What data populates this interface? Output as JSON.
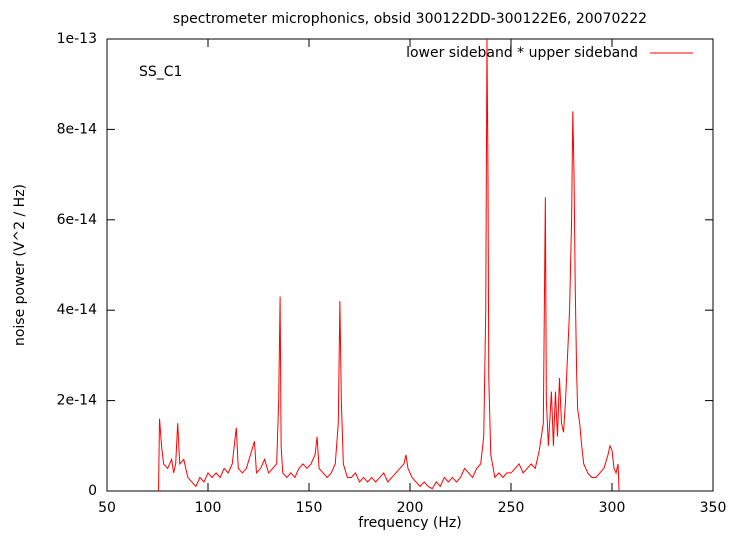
{
  "chart_data": {
    "type": "line",
    "title": "spectrometer microphonics, obsid 300122DD-300122E6, 20070222",
    "xlabel": "frequency (Hz)",
    "ylabel": "noise power (V^2 / Hz)",
    "annotation": "SS_C1",
    "legend": "top-right",
    "xlim": [
      50,
      350
    ],
    "xticks": [
      50,
      100,
      150,
      200,
      250,
      300,
      350
    ],
    "ylim": [
      0,
      1e-13
    ],
    "yticks": [
      0,
      2e-14,
      4e-14,
      6e-14,
      8e-14,
      1e-13
    ],
    "x": [
      75.5,
      76,
      77,
      78,
      80,
      82,
      83,
      84,
      85,
      86,
      88,
      90,
      92,
      94,
      96,
      98,
      100,
      102,
      104,
      106,
      108,
      110,
      112,
      114,
      115,
      117,
      119,
      121,
      123,
      124,
      126,
      128,
      130,
      132,
      134,
      135,
      135.7,
      136.2,
      137,
      139,
      141,
      143,
      145,
      147,
      149,
      151,
      153,
      154,
      155,
      157,
      159,
      161,
      163,
      164.5,
      165.3,
      166,
      167,
      169,
      171,
      173,
      175,
      177,
      179,
      181,
      183,
      185,
      187,
      189,
      191,
      193,
      195,
      197,
      198,
      199,
      201,
      203,
      205,
      207,
      209,
      211,
      213,
      215,
      217,
      219,
      221,
      223,
      225,
      227,
      229,
      231,
      233,
      235,
      236.5,
      237.5,
      238.1,
      238.6,
      239,
      240,
      242,
      244,
      246,
      248,
      250,
      252,
      254,
      256,
      258,
      260,
      262,
      264,
      266,
      267,
      267.5,
      268.5,
      270,
      271,
      272,
      273,
      274,
      275,
      276,
      277,
      278,
      279,
      280,
      280.6,
      281.2,
      281.8,
      282.5,
      283,
      284,
      285,
      286,
      288,
      290,
      292,
      294,
      296,
      298,
      299,
      300,
      301,
      302,
      303,
      303.5
    ],
    "series": [
      {
        "name": "lower sideband * upper sideband",
        "color": "#ff0000",
        "values": [
          0,
          1.6e-14,
          1e-14,
          6e-15,
          5e-15,
          7e-15,
          4e-15,
          6e-15,
          1.5e-14,
          6e-15,
          7e-15,
          3e-15,
          2e-15,
          1e-15,
          3e-15,
          2e-15,
          4e-15,
          3e-15,
          4e-15,
          3e-15,
          5e-15,
          4e-15,
          6e-15,
          1.4e-14,
          5e-15,
          4e-15,
          5e-15,
          8e-15,
          1.1e-14,
          4e-15,
          5e-15,
          7e-15,
          4e-15,
          5e-15,
          6e-15,
          2e-14,
          4.3e-14,
          1e-14,
          4e-15,
          3e-15,
          4e-15,
          3e-15,
          5e-15,
          6e-15,
          5e-15,
          6e-15,
          8e-15,
          1.2e-14,
          5e-15,
          4e-15,
          3e-15,
          4e-15,
          6e-15,
          1.5e-14,
          4.2e-14,
          2e-14,
          6e-15,
          3e-15,
          3e-15,
          4e-15,
          2e-15,
          3e-15,
          2e-15,
          3e-15,
          2e-15,
          3e-15,
          4e-15,
          2e-15,
          3e-15,
          4e-15,
          5e-15,
          6e-15,
          8e-15,
          5e-15,
          3e-15,
          2e-15,
          1e-15,
          2e-15,
          1e-15,
          5e-16,
          2e-15,
          1e-15,
          3e-15,
          2e-15,
          3e-15,
          2e-15,
          3e-15,
          5e-15,
          4e-15,
          3e-15,
          5e-15,
          6e-15,
          1.2e-14,
          4e-14,
          1e-13,
          7e-14,
          2.5e-14,
          8e-15,
          3e-15,
          4e-15,
          3e-15,
          4e-15,
          4e-15,
          5e-15,
          6e-15,
          4e-15,
          5e-15,
          6e-15,
          5e-15,
          9e-15,
          1.5e-14,
          6.5e-14,
          2e-14,
          1e-14,
          2.2e-14,
          1e-14,
          2.2e-14,
          1.2e-14,
          2.5e-14,
          1.5e-14,
          1.3e-14,
          2e-14,
          3e-14,
          4e-14,
          6e-14,
          8.4e-14,
          7e-14,
          4.5e-14,
          2.6e-14,
          1.8e-14,
          1.5e-14,
          1e-14,
          6e-15,
          4e-15,
          3e-15,
          3e-15,
          4e-15,
          5e-15,
          8e-15,
          1e-14,
          9e-15,
          5e-15,
          4e-15,
          6e-15,
          0
        ]
      }
    ]
  }
}
